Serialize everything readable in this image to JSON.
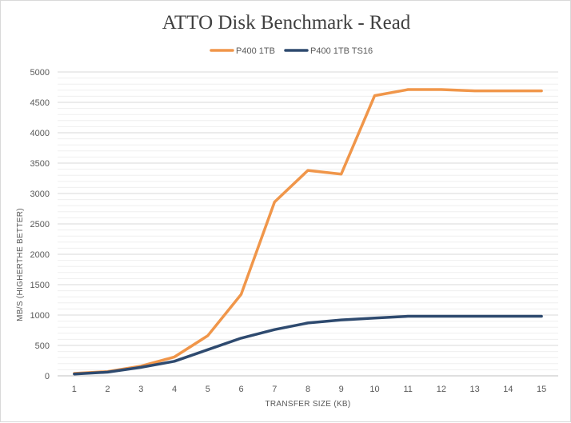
{
  "chart_data": {
    "type": "line",
    "title": "ATTO Disk Benchmark - Read",
    "xlabel": "TRANSFER SIZE (KB)",
    "ylabel": "MB/S (HIGHERTHE BETTER)",
    "x": [
      1,
      2,
      3,
      4,
      5,
      6,
      7,
      8,
      9,
      10,
      11,
      12,
      13,
      14,
      15
    ],
    "ylim": [
      0,
      5000
    ],
    "yticks": [
      0,
      500,
      1000,
      1500,
      2000,
      2500,
      3000,
      3500,
      4000,
      4500,
      5000
    ],
    "grid": true,
    "legend_position": "top",
    "series": [
      {
        "name": "P400 1TB",
        "color": "#f0964a",
        "values": [
          40,
          70,
          160,
          310,
          660,
          1340,
          2860,
          3380,
          3320,
          4610,
          4710,
          4710,
          4690,
          4690,
          4690
        ]
      },
      {
        "name": "P400 1TB TS16",
        "color": "#2e4a6f",
        "values": [
          30,
          60,
          140,
          240,
          430,
          620,
          760,
          870,
          920,
          950,
          980,
          980,
          980,
          980,
          980
        ]
      }
    ]
  }
}
